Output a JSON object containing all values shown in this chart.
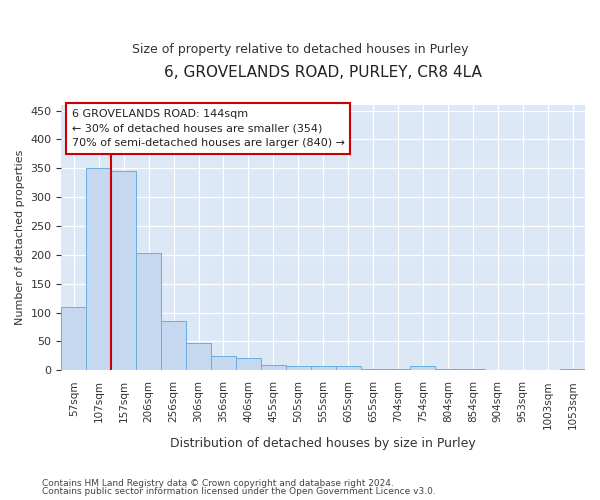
{
  "title": "6, GROVELANDS ROAD, PURLEY, CR8 4LA",
  "subtitle": "Size of property relative to detached houses in Purley",
  "xlabel": "Distribution of detached houses by size in Purley",
  "ylabel": "Number of detached properties",
  "footer_line1": "Contains HM Land Registry data © Crown copyright and database right 2024.",
  "footer_line2": "Contains public sector information licensed under the Open Government Licence v3.0.",
  "annotation_line1": "6 GROVELANDS ROAD: 144sqm",
  "annotation_line2": "← 30% of detached houses are smaller (354)",
  "annotation_line3": "70% of semi-detached houses are larger (840) →",
  "bar_color": "#c5d8f0",
  "bar_edge_color": "#6aace0",
  "vline_color": "#cc0000",
  "vline_x": 1.5,
  "categories": [
    "57sqm",
    "107sqm",
    "157sqm",
    "206sqm",
    "256sqm",
    "306sqm",
    "356sqm",
    "406sqm",
    "455sqm",
    "505sqm",
    "555sqm",
    "605sqm",
    "655sqm",
    "704sqm",
    "754sqm",
    "804sqm",
    "854sqm",
    "904sqm",
    "953sqm",
    "1003sqm",
    "1053sqm"
  ],
  "values": [
    110,
    350,
    345,
    203,
    85,
    47,
    25,
    22,
    10,
    7,
    7,
    7,
    2,
    2,
    7,
    2,
    3,
    0,
    0,
    0,
    3
  ],
  "ylim": [
    0,
    460
  ],
  "yticks": [
    0,
    50,
    100,
    150,
    200,
    250,
    300,
    350,
    400,
    450
  ],
  "background_color": "#ffffff",
  "plot_bg_color": "#dce8f5"
}
